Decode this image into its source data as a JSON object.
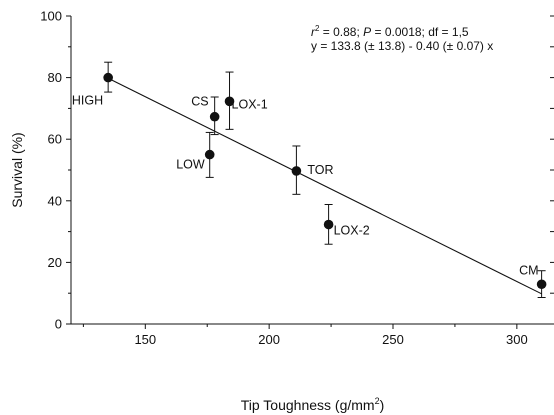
{
  "chart_data": {
    "type": "scatter",
    "title": "",
    "xlabel": {
      "main": "Tip Toughness (g/mm",
      "sup": "2",
      "close": ")"
    },
    "ylabel": "Survival (%)",
    "xlim": [
      120,
      315
    ],
    "ylim": [
      0,
      100
    ],
    "x_ticks": [
      150,
      200,
      250,
      300
    ],
    "y_ticks": [
      0,
      20,
      40,
      60,
      80,
      100
    ],
    "grid": false,
    "points": [
      {
        "label": "HIGH",
        "x": 135,
        "y": 80.0,
        "err_hi": 85.0,
        "err_lo": 75.3
      },
      {
        "label": "CS",
        "x": 178,
        "y": 67.3,
        "err_hi": 73.7,
        "err_lo": 61.5
      },
      {
        "label": "LOX-1",
        "x": 184,
        "y": 72.3,
        "err_hi": 81.8,
        "err_lo": 63.2
      },
      {
        "label": "LOW",
        "x": 176,
        "y": 55.0,
        "err_hi": 62.2,
        "err_lo": 47.6
      },
      {
        "label": "TOR",
        "x": 211,
        "y": 49.7,
        "err_hi": 57.8,
        "err_lo": 42.1
      },
      {
        "label": "LOX-2",
        "x": 224,
        "y": 32.3,
        "err_hi": 38.8,
        "err_lo": 25.9
      },
      {
        "label": "CM",
        "x": 310,
        "y": 12.9,
        "err_hi": 17.3,
        "err_lo": 8.6
      }
    ],
    "regression": {
      "slope": -0.4,
      "intercept": 133.8,
      "x_from": 135,
      "x_to": 310
    },
    "annotations": {
      "stats_line1": [
        "r",
        "2",
        " = 0.88; ",
        "P",
        " = 0.0018; df = 1,5"
      ],
      "stats_line2": "y = 133.8 (± 13.8) - 0.40 (± 0.07) x"
    }
  }
}
